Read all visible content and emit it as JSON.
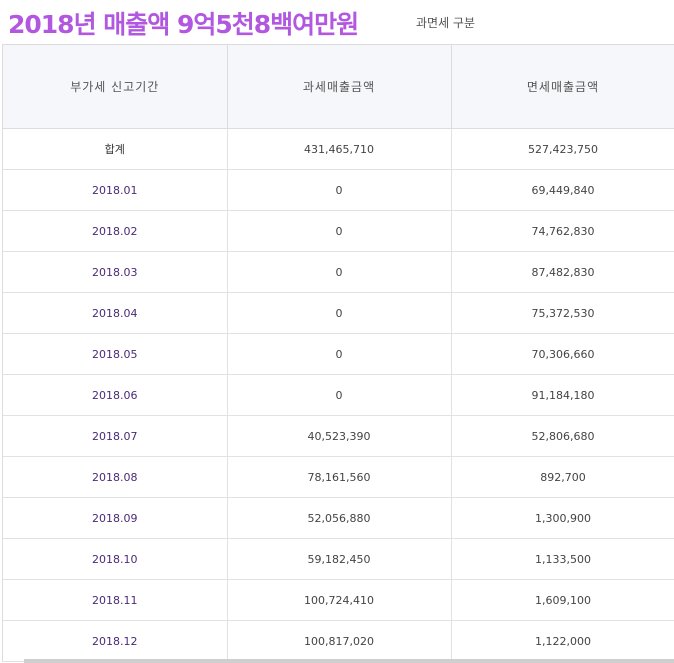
{
  "header": {
    "title": "2018년 매출액 9억5천8백여만원",
    "category_label": "과면세 구분"
  },
  "table": {
    "columns": [
      "부가세 신고기간",
      "과세매출금액",
      "면세매출금액"
    ],
    "rows": [
      {
        "period": "합계",
        "taxable": "431,465,710",
        "exempt": "527,423,750"
      },
      {
        "period": "2018.01",
        "taxable": "0",
        "exempt": "69,449,840"
      },
      {
        "period": "2018.02",
        "taxable": "0",
        "exempt": "74,762,830"
      },
      {
        "period": "2018.03",
        "taxable": "0",
        "exempt": "87,482,830"
      },
      {
        "period": "2018.04",
        "taxable": "0",
        "exempt": "75,372,530"
      },
      {
        "period": "2018.05",
        "taxable": "0",
        "exempt": "70,306,660"
      },
      {
        "period": "2018.06",
        "taxable": "0",
        "exempt": "91,184,180"
      },
      {
        "period": "2018.07",
        "taxable": "40,523,390",
        "exempt": "52,806,680"
      },
      {
        "period": "2018.08",
        "taxable": "78,161,560",
        "exempt": "892,700"
      },
      {
        "period": "2018.09",
        "taxable": "52,056,880",
        "exempt": "1,300,900"
      },
      {
        "period": "2018.10",
        "taxable": "59,182,450",
        "exempt": "1,133,500"
      },
      {
        "period": "2018.11",
        "taxable": "100,724,410",
        "exempt": "1,609,100"
      },
      {
        "period": "2018.12",
        "taxable": "100,817,020",
        "exempt": "1,122,000"
      }
    ]
  },
  "colors": {
    "title": "#b157e0",
    "period_text": "#4a2a78",
    "header_bg": "#f6f7fb"
  }
}
